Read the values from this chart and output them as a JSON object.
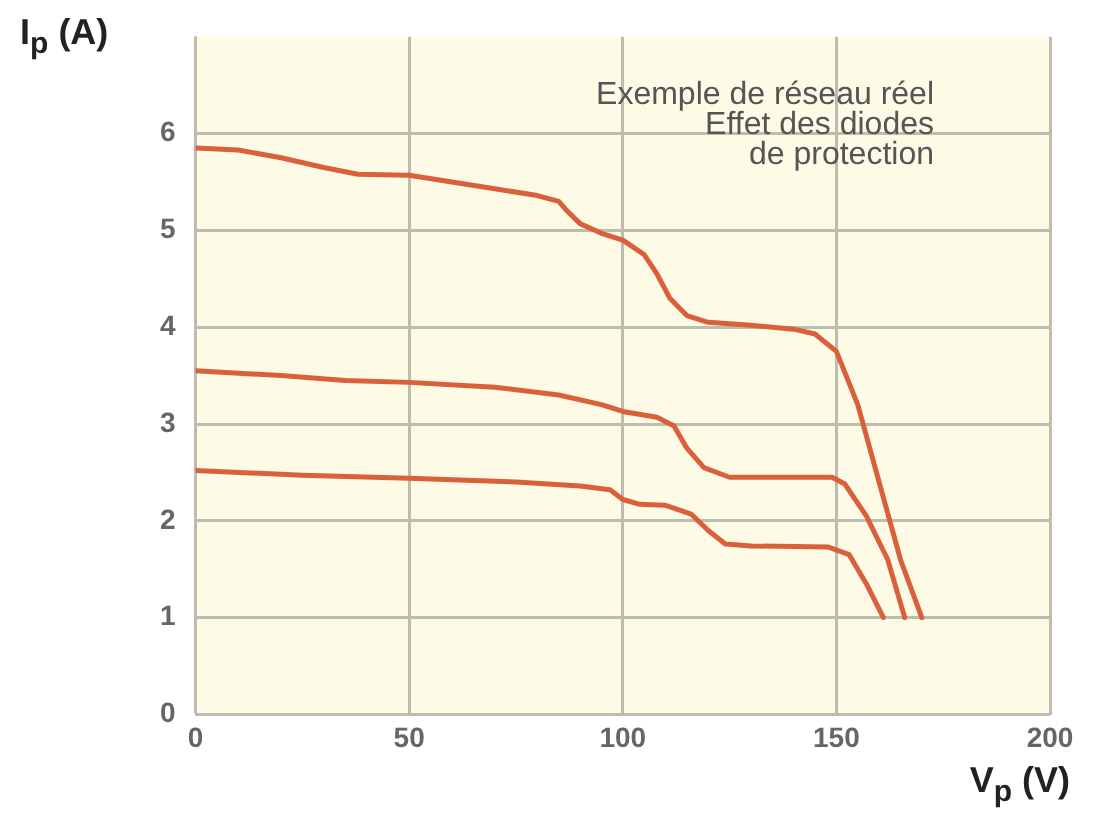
{
  "chart_data": {
    "type": "line",
    "xlabel": "V$_{p}$ (V)",
    "ylabel": "I$_{p}$ (A)",
    "annotations": [
      "Exemple de réseau réel",
      "Effet des diodes",
      "de protection"
    ],
    "xlim": [
      0,
      200
    ],
    "xticks": [
      0,
      50,
      100,
      150,
      200
    ],
    "ylim": [
      0,
      7
    ],
    "yticks": [
      0,
      1,
      2,
      3,
      4,
      5,
      6
    ],
    "grid": true,
    "legend": false,
    "marker": "none",
    "line_style": "solid",
    "series": [
      {
        "color": "#d9603b",
        "x": [
          0,
          10,
          20,
          30,
          38,
          50,
          60,
          70,
          80,
          85,
          87,
          90,
          95,
          100,
          105,
          108,
          111,
          115,
          120,
          130,
          140,
          145,
          150,
          155,
          160,
          165,
          170
        ],
        "values": [
          5.85,
          5.83,
          5.75,
          5.65,
          5.58,
          5.57,
          5.5,
          5.43,
          5.36,
          5.3,
          5.2,
          5.07,
          4.97,
          4.9,
          4.75,
          4.55,
          4.3,
          4.12,
          4.05,
          4.02,
          3.98,
          3.93,
          3.75,
          3.2,
          2.4,
          1.6,
          1.0
        ]
      },
      {
        "color": "#d9603b",
        "x": [
          0,
          20,
          35,
          50,
          70,
          85,
          95,
          100,
          108,
          112,
          115,
          119,
          125,
          140,
          149,
          152,
          157,
          162,
          166
        ],
        "values": [
          3.55,
          3.5,
          3.45,
          3.43,
          3.38,
          3.3,
          3.2,
          3.13,
          3.07,
          2.98,
          2.75,
          2.55,
          2.45,
          2.45,
          2.45,
          2.38,
          2.05,
          1.6,
          1.0
        ]
      },
      {
        "color": "#d9603b",
        "x": [
          0,
          25,
          50,
          75,
          90,
          97,
          100,
          104,
          110,
          116,
          120,
          124,
          130,
          148,
          153,
          157,
          161
        ],
        "values": [
          2.52,
          2.47,
          2.44,
          2.4,
          2.36,
          2.32,
          2.22,
          2.17,
          2.16,
          2.07,
          1.9,
          1.76,
          1.74,
          1.73,
          1.65,
          1.35,
          1.0
        ]
      }
    ]
  }
}
